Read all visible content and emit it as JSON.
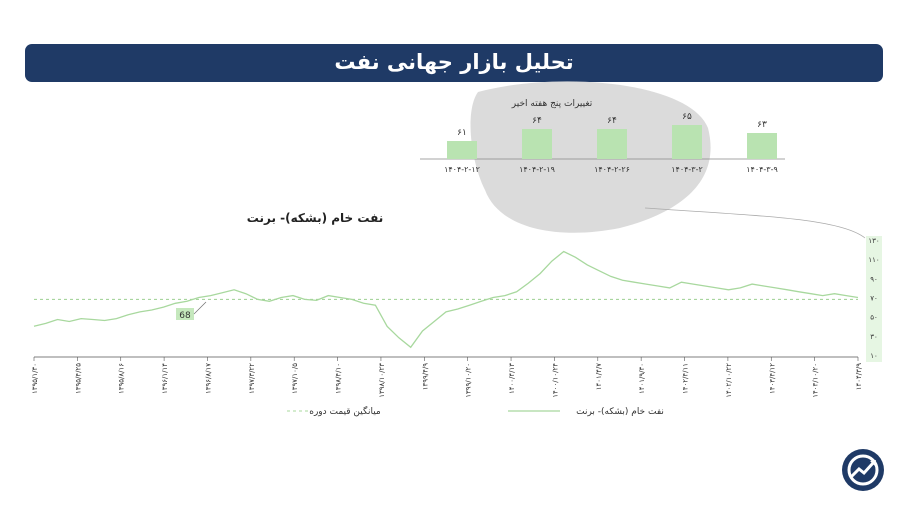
{
  "header": {
    "title": "تحلیل بازار جهانی نفت"
  },
  "weekly": {
    "title": "تغییرات پنج هفته اخیر",
    "bars": [
      {
        "date": "۱۴۰۴-۳-۹",
        "value": 63,
        "label": "۶۳"
      },
      {
        "date": "۱۴۰۴-۳-۲",
        "value": 65,
        "label": "۶۵"
      },
      {
        "date": "۱۴۰۴-۲-۲۶",
        "value": 64,
        "label": "۶۴"
      },
      {
        "date": "۱۴۰۴-۲-۱۹",
        "value": 64,
        "label": "۶۴"
      },
      {
        "date": "۱۴۰۴-۲-۱۲",
        "value": 61,
        "label": "۶۱"
      }
    ],
    "bar_color": "#b9e3b1"
  },
  "chart_data": {
    "type": "line",
    "title": "نفت خام (بشکه)- برنت",
    "y_ticks": [
      "۱۳۰",
      "۱۱۰",
      "۹۰",
      "۷۰",
      "۵۰",
      "۳۰",
      "۱۰"
    ],
    "ylim": [
      10,
      130
    ],
    "average": 68,
    "average_label": "68",
    "series": [
      {
        "name": "نفت خام (بشکه)- برنت",
        "color": "#a8d89e",
        "values": [
          40,
          43,
          47,
          45,
          48,
          47,
          46,
          48,
          52,
          55,
          57,
          60,
          64,
          66,
          70,
          72,
          75,
          78,
          74,
          68,
          66,
          70,
          72,
          68,
          67,
          72,
          70,
          68,
          64,
          62,
          40,
          28,
          18,
          35,
          45,
          55,
          58,
          62,
          66,
          70,
          72,
          76,
          85,
          95,
          108,
          118,
          112,
          104,
          98,
          92,
          88,
          86,
          84,
          82,
          80,
          86,
          84,
          82,
          80,
          78,
          80,
          84,
          82,
          80,
          78,
          76,
          74,
          72,
          74,
          72,
          70
        ]
      }
    ],
    "x_labels": [
      "۱۳۹۵/۱/۳۰",
      "۱۳۹۵/۴/۲۵",
      "۱۳۹۵/۸/۱۶",
      "۱۳۹۶/۱/۱۴",
      "۱۳۹۶/۸/۱۷",
      "۱۳۹۷/۳/۲۲",
      "۱۳۹۷/۱۰/۵",
      "۱۳۹۸/۴/۱۰",
      "۱۳۹۸/۱۰/۲۳",
      "۱۳۹۹/۴/۹",
      "۱۳۹۹/۱۰/۲۰",
      "۱۴۰۰/۴/۱۳",
      "۱۴۰۰/۱۰/۲۴",
      "۱۴۰۱/۴/۷",
      "۱۴۰۱/۹/۳۰",
      "۱۴۰۲/۴/۱۱",
      "۱۴۰۲/۱۰/۲۲",
      "۱۴۰۳/۴/۱۲",
      "۱۴۰۳/۱۰/۲۰",
      "۱۴۰۴/۳/۹"
    ],
    "legend": [
      {
        "name": "نفت خام (بشکه)- برنت",
        "style": "solid",
        "color": "#a8d89e"
      },
      {
        "name": "میانگین قیمت دوره",
        "style": "dashed",
        "color": "#a8d89e"
      }
    ],
    "legend_position": "bottom",
    "grid": false,
    "highlight_color": "#e6f6e3"
  }
}
